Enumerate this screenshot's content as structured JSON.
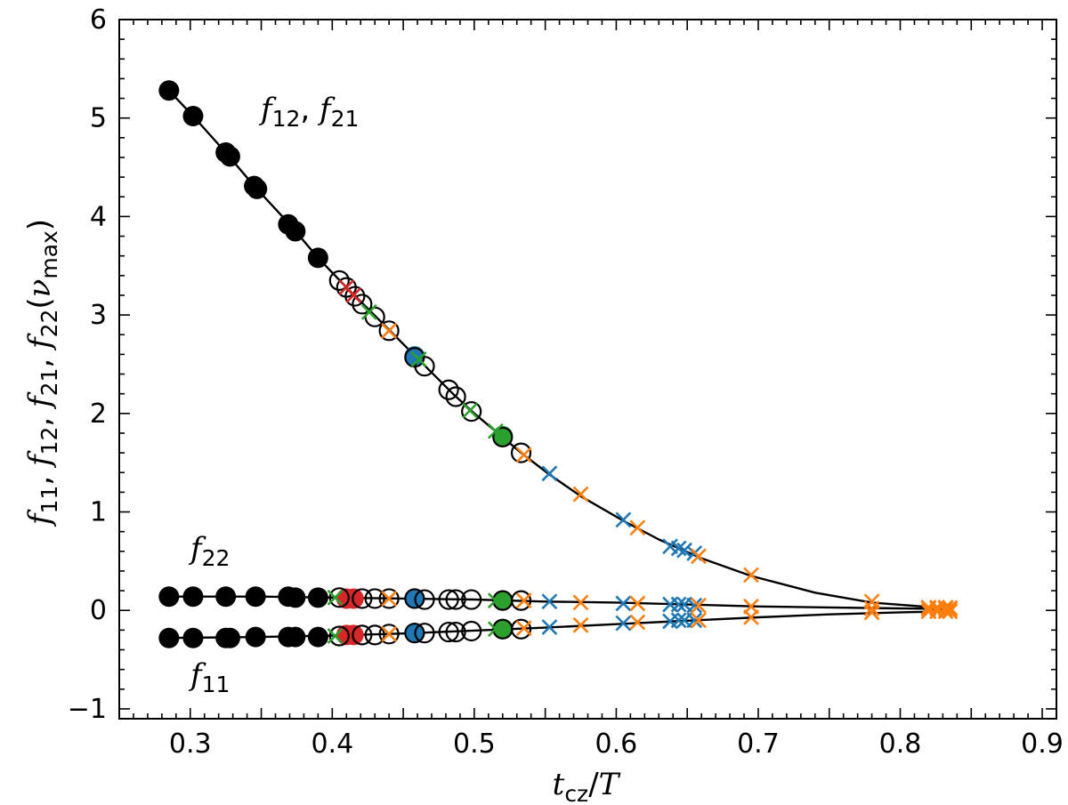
{
  "chart_data": {
    "type": "scatter",
    "title": "",
    "xlabel": {
      "t": "t",
      "sub": "cz",
      "slash": "/",
      "T": "T"
    },
    "ylabel": {
      "f": "f",
      "s11": "11",
      "s12": "12",
      "s21": "21",
      "s22": "22",
      "sep": ", ",
      "open": "(",
      "nu": "ν",
      "nusub": "max",
      "close": ")"
    },
    "xlim": [
      0.25,
      0.91
    ],
    "ylim": [
      -1.1,
      6.0
    ],
    "x_ticks": [
      "0.3",
      "0.4",
      "0.5",
      "0.6",
      "0.7",
      "0.8",
      "0.9"
    ],
    "y_ticks": [
      "−1",
      "0",
      "1",
      "2",
      "3",
      "4",
      "5",
      "6"
    ],
    "annotations": {
      "f12_f21": {
        "f": "f",
        "a": "12",
        "sep": ",  ",
        "b": "21"
      },
      "f22": {
        "f": "f",
        "a": "22"
      },
      "f11": {
        "f": "f",
        "a": "11"
      }
    },
    "colors": {
      "black": "#000000",
      "blue": "#1f77b4",
      "orange": "#ff7f0e",
      "green": "#2ca02c",
      "red": "#d62728"
    },
    "series": [
      {
        "name": "f12, f21",
        "curve": [
          [
            0.285,
            5.28
          ],
          [
            0.302,
            5.02
          ],
          [
            0.325,
            4.65
          ],
          [
            0.345,
            4.31
          ],
          [
            0.37,
            3.92
          ],
          [
            0.39,
            3.58
          ],
          [
            0.41,
            3.28
          ],
          [
            0.44,
            2.85
          ],
          [
            0.46,
            2.56
          ],
          [
            0.485,
            2.2
          ],
          [
            0.5,
            2.0
          ],
          [
            0.52,
            1.76
          ],
          [
            0.533,
            1.6
          ],
          [
            0.553,
            1.38
          ],
          [
            0.575,
            1.16
          ],
          [
            0.605,
            0.91
          ],
          [
            0.63,
            0.72
          ],
          [
            0.66,
            0.53
          ],
          [
            0.695,
            0.35
          ],
          [
            0.74,
            0.18
          ],
          [
            0.78,
            0.08
          ],
          [
            0.82,
            0.035
          ],
          [
            0.835,
            0.028
          ]
        ],
        "points": [
          {
            "x": 0.285,
            "y": 5.28,
            "m": "filled",
            "c": "black"
          },
          {
            "x": 0.302,
            "y": 5.02,
            "m": "filled",
            "c": "black"
          },
          {
            "x": 0.325,
            "y": 4.65,
            "m": "filled",
            "c": "black"
          },
          {
            "x": 0.328,
            "y": 4.61,
            "m": "filled",
            "c": "black"
          },
          {
            "x": 0.345,
            "y": 4.31,
            "m": "filled",
            "c": "black"
          },
          {
            "x": 0.347,
            "y": 4.28,
            "m": "filled",
            "c": "black"
          },
          {
            "x": 0.369,
            "y": 3.92,
            "m": "filled",
            "c": "black"
          },
          {
            "x": 0.374,
            "y": 3.85,
            "m": "filled",
            "c": "black"
          },
          {
            "x": 0.39,
            "y": 3.58,
            "m": "filled",
            "c": "black"
          },
          {
            "x": 0.405,
            "y": 3.35,
            "m": "open",
            "c": "black"
          },
          {
            "x": 0.41,
            "y": 3.28,
            "m": "x",
            "c": "red"
          },
          {
            "x": 0.41,
            "y": 3.28,
            "m": "open",
            "c": "black"
          },
          {
            "x": 0.415,
            "y": 3.2,
            "m": "x",
            "c": "red"
          },
          {
            "x": 0.416,
            "y": 3.19,
            "m": "open",
            "c": "black"
          },
          {
            "x": 0.421,
            "y": 3.11,
            "m": "open",
            "c": "black"
          },
          {
            "x": 0.426,
            "y": 3.03,
            "m": "x",
            "c": "green"
          },
          {
            "x": 0.43,
            "y": 2.98,
            "m": "open",
            "c": "black"
          },
          {
            "x": 0.44,
            "y": 2.84,
            "m": "x",
            "c": "orange"
          },
          {
            "x": 0.44,
            "y": 2.84,
            "m": "open",
            "c": "black"
          },
          {
            "x": 0.458,
            "y": 2.58,
            "m": "filled",
            "c": "blue"
          },
          {
            "x": 0.458,
            "y": 2.57,
            "m": "open",
            "c": "black"
          },
          {
            "x": 0.461,
            "y": 2.55,
            "m": "x",
            "c": "green"
          },
          {
            "x": 0.465,
            "y": 2.48,
            "m": "open",
            "c": "black"
          },
          {
            "x": 0.482,
            "y": 2.24,
            "m": "open",
            "c": "black"
          },
          {
            "x": 0.487,
            "y": 2.17,
            "m": "open",
            "c": "black"
          },
          {
            "x": 0.497,
            "y": 2.03,
            "m": "x",
            "c": "green"
          },
          {
            "x": 0.498,
            "y": 2.02,
            "m": "open",
            "c": "black"
          },
          {
            "x": 0.515,
            "y": 1.82,
            "m": "x",
            "c": "green"
          },
          {
            "x": 0.52,
            "y": 1.77,
            "m": "filled",
            "c": "green"
          },
          {
            "x": 0.52,
            "y": 1.76,
            "m": "open",
            "c": "black"
          },
          {
            "x": 0.533,
            "y": 1.6,
            "m": "open",
            "c": "black"
          },
          {
            "x": 0.535,
            "y": 1.58,
            "m": "x",
            "c": "orange"
          },
          {
            "x": 0.553,
            "y": 1.39,
            "m": "x",
            "c": "blue"
          },
          {
            "x": 0.575,
            "y": 1.18,
            "m": "x",
            "c": "orange"
          },
          {
            "x": 0.605,
            "y": 0.92,
            "m": "x",
            "c": "blue"
          },
          {
            "x": 0.615,
            "y": 0.84,
            "m": "x",
            "c": "orange"
          },
          {
            "x": 0.638,
            "y": 0.65,
            "m": "x",
            "c": "blue"
          },
          {
            "x": 0.644,
            "y": 0.63,
            "m": "x",
            "c": "blue"
          },
          {
            "x": 0.648,
            "y": 0.61,
            "m": "x",
            "c": "blue"
          },
          {
            "x": 0.655,
            "y": 0.58,
            "m": "x",
            "c": "blue"
          },
          {
            "x": 0.658,
            "y": 0.55,
            "m": "x",
            "c": "orange"
          },
          {
            "x": 0.695,
            "y": 0.36,
            "m": "x",
            "c": "orange"
          },
          {
            "x": 0.78,
            "y": 0.09,
            "m": "x",
            "c": "orange"
          },
          {
            "x": 0.82,
            "y": 0.03,
            "m": "x",
            "c": "orange"
          },
          {
            "x": 0.826,
            "y": 0.03,
            "m": "x",
            "c": "orange"
          },
          {
            "x": 0.832,
            "y": 0.03,
            "m": "x",
            "c": "orange"
          },
          {
            "x": 0.835,
            "y": 0.025,
            "m": "x",
            "c": "orange"
          }
        ]
      },
      {
        "name": "f22",
        "curve": [
          [
            0.285,
            0.14
          ],
          [
            0.35,
            0.14
          ],
          [
            0.4,
            0.13
          ],
          [
            0.45,
            0.12
          ],
          [
            0.5,
            0.11
          ],
          [
            0.55,
            0.09
          ],
          [
            0.6,
            0.08
          ],
          [
            0.65,
            0.06
          ],
          [
            0.7,
            0.04
          ],
          [
            0.75,
            0.03
          ],
          [
            0.8,
            0.02
          ],
          [
            0.835,
            0.015
          ]
        ],
        "points": [
          {
            "x": 0.285,
            "y": 0.14,
            "m": "filled",
            "c": "black"
          },
          {
            "x": 0.302,
            "y": 0.14,
            "m": "filled",
            "c": "black"
          },
          {
            "x": 0.325,
            "y": 0.14,
            "m": "filled",
            "c": "black"
          },
          {
            "x": 0.346,
            "y": 0.14,
            "m": "filled",
            "c": "black"
          },
          {
            "x": 0.369,
            "y": 0.14,
            "m": "filled",
            "c": "black"
          },
          {
            "x": 0.374,
            "y": 0.13,
            "m": "filled",
            "c": "black"
          },
          {
            "x": 0.39,
            "y": 0.13,
            "m": "filled",
            "c": "black"
          },
          {
            "x": 0.402,
            "y": 0.13,
            "m": "x",
            "c": "green"
          },
          {
            "x": 0.405,
            "y": 0.13,
            "m": "open",
            "c": "black"
          },
          {
            "x": 0.41,
            "y": 0.12,
            "m": "filled",
            "c": "red"
          },
          {
            "x": 0.415,
            "y": 0.12,
            "m": "filled",
            "c": "red"
          },
          {
            "x": 0.421,
            "y": 0.12,
            "m": "open",
            "c": "black"
          },
          {
            "x": 0.43,
            "y": 0.12,
            "m": "open",
            "c": "black"
          },
          {
            "x": 0.44,
            "y": 0.12,
            "m": "x",
            "c": "orange"
          },
          {
            "x": 0.44,
            "y": 0.12,
            "m": "open",
            "c": "black"
          },
          {
            "x": 0.458,
            "y": 0.12,
            "m": "filled",
            "c": "blue"
          },
          {
            "x": 0.458,
            "y": 0.12,
            "m": "open",
            "c": "black"
          },
          {
            "x": 0.465,
            "y": 0.11,
            "m": "open",
            "c": "black"
          },
          {
            "x": 0.482,
            "y": 0.11,
            "m": "open",
            "c": "black"
          },
          {
            "x": 0.487,
            "y": 0.11,
            "m": "open",
            "c": "black"
          },
          {
            "x": 0.498,
            "y": 0.11,
            "m": "open",
            "c": "black"
          },
          {
            "x": 0.515,
            "y": 0.1,
            "m": "x",
            "c": "green"
          },
          {
            "x": 0.52,
            "y": 0.1,
            "m": "filled",
            "c": "green"
          },
          {
            "x": 0.52,
            "y": 0.1,
            "m": "open",
            "c": "black"
          },
          {
            "x": 0.533,
            "y": 0.1,
            "m": "open",
            "c": "black"
          },
          {
            "x": 0.535,
            "y": 0.1,
            "m": "x",
            "c": "orange"
          },
          {
            "x": 0.553,
            "y": 0.09,
            "m": "x",
            "c": "blue"
          },
          {
            "x": 0.575,
            "y": 0.08,
            "m": "x",
            "c": "orange"
          },
          {
            "x": 0.605,
            "y": 0.07,
            "m": "x",
            "c": "blue"
          },
          {
            "x": 0.615,
            "y": 0.07,
            "m": "x",
            "c": "orange"
          },
          {
            "x": 0.638,
            "y": 0.06,
            "m": "x",
            "c": "blue"
          },
          {
            "x": 0.644,
            "y": 0.06,
            "m": "x",
            "c": "blue"
          },
          {
            "x": 0.648,
            "y": 0.06,
            "m": "x",
            "c": "blue"
          },
          {
            "x": 0.655,
            "y": 0.05,
            "m": "x",
            "c": "blue"
          },
          {
            "x": 0.658,
            "y": 0.05,
            "m": "x",
            "c": "orange"
          },
          {
            "x": 0.695,
            "y": 0.04,
            "m": "x",
            "c": "orange"
          },
          {
            "x": 0.78,
            "y": 0.02,
            "m": "x",
            "c": "orange"
          },
          {
            "x": 0.82,
            "y": 0.02,
            "m": "x",
            "c": "orange"
          },
          {
            "x": 0.826,
            "y": 0.02,
            "m": "x",
            "c": "orange"
          },
          {
            "x": 0.832,
            "y": 0.02,
            "m": "x",
            "c": "orange"
          },
          {
            "x": 0.835,
            "y": 0.015,
            "m": "x",
            "c": "orange"
          }
        ]
      },
      {
        "name": "f11",
        "curve": [
          [
            0.285,
            -0.28
          ],
          [
            0.35,
            -0.27
          ],
          [
            0.4,
            -0.255
          ],
          [
            0.45,
            -0.235
          ],
          [
            0.5,
            -0.205
          ],
          [
            0.55,
            -0.175
          ],
          [
            0.6,
            -0.14
          ],
          [
            0.65,
            -0.105
          ],
          [
            0.7,
            -0.07
          ],
          [
            0.75,
            -0.04
          ],
          [
            0.8,
            -0.02
          ],
          [
            0.835,
            -0.01
          ]
        ],
        "points": [
          {
            "x": 0.285,
            "y": -0.28,
            "m": "filled",
            "c": "black"
          },
          {
            "x": 0.302,
            "y": -0.28,
            "m": "filled",
            "c": "black"
          },
          {
            "x": 0.325,
            "y": -0.28,
            "m": "filled",
            "c": "black"
          },
          {
            "x": 0.328,
            "y": -0.28,
            "m": "filled",
            "c": "black"
          },
          {
            "x": 0.346,
            "y": -0.27,
            "m": "filled",
            "c": "black"
          },
          {
            "x": 0.369,
            "y": -0.27,
            "m": "filled",
            "c": "black"
          },
          {
            "x": 0.374,
            "y": -0.27,
            "m": "filled",
            "c": "black"
          },
          {
            "x": 0.39,
            "y": -0.27,
            "m": "filled",
            "c": "black"
          },
          {
            "x": 0.402,
            "y": -0.26,
            "m": "x",
            "c": "green"
          },
          {
            "x": 0.405,
            "y": -0.26,
            "m": "open",
            "c": "black"
          },
          {
            "x": 0.41,
            "y": -0.25,
            "m": "filled",
            "c": "red"
          },
          {
            "x": 0.415,
            "y": -0.25,
            "m": "filled",
            "c": "red"
          },
          {
            "x": 0.421,
            "y": -0.25,
            "m": "open",
            "c": "black"
          },
          {
            "x": 0.43,
            "y": -0.25,
            "m": "open",
            "c": "black"
          },
          {
            "x": 0.44,
            "y": -0.24,
            "m": "x",
            "c": "orange"
          },
          {
            "x": 0.44,
            "y": -0.24,
            "m": "open",
            "c": "black"
          },
          {
            "x": 0.458,
            "y": -0.23,
            "m": "filled",
            "c": "blue"
          },
          {
            "x": 0.458,
            "y": -0.23,
            "m": "open",
            "c": "black"
          },
          {
            "x": 0.465,
            "y": -0.23,
            "m": "open",
            "c": "black"
          },
          {
            "x": 0.482,
            "y": -0.22,
            "m": "open",
            "c": "black"
          },
          {
            "x": 0.487,
            "y": -0.22,
            "m": "open",
            "c": "black"
          },
          {
            "x": 0.498,
            "y": -0.21,
            "m": "open",
            "c": "black"
          },
          {
            "x": 0.515,
            "y": -0.19,
            "m": "x",
            "c": "green"
          },
          {
            "x": 0.52,
            "y": -0.19,
            "m": "filled",
            "c": "green"
          },
          {
            "x": 0.52,
            "y": -0.19,
            "m": "open",
            "c": "black"
          },
          {
            "x": 0.533,
            "y": -0.19,
            "m": "open",
            "c": "black"
          },
          {
            "x": 0.535,
            "y": -0.18,
            "m": "x",
            "c": "orange"
          },
          {
            "x": 0.553,
            "y": -0.17,
            "m": "x",
            "c": "blue"
          },
          {
            "x": 0.575,
            "y": -0.15,
            "m": "x",
            "c": "orange"
          },
          {
            "x": 0.605,
            "y": -0.13,
            "m": "x",
            "c": "blue"
          },
          {
            "x": 0.615,
            "y": -0.12,
            "m": "x",
            "c": "orange"
          },
          {
            "x": 0.638,
            "y": -0.11,
            "m": "x",
            "c": "blue"
          },
          {
            "x": 0.644,
            "y": -0.1,
            "m": "x",
            "c": "blue"
          },
          {
            "x": 0.648,
            "y": -0.1,
            "m": "x",
            "c": "blue"
          },
          {
            "x": 0.655,
            "y": -0.1,
            "m": "x",
            "c": "blue"
          },
          {
            "x": 0.658,
            "y": -0.1,
            "m": "x",
            "c": "orange"
          },
          {
            "x": 0.695,
            "y": -0.07,
            "m": "x",
            "c": "orange"
          },
          {
            "x": 0.78,
            "y": -0.02,
            "m": "x",
            "c": "orange"
          },
          {
            "x": 0.82,
            "y": -0.01,
            "m": "x",
            "c": "orange"
          },
          {
            "x": 0.826,
            "y": -0.01,
            "m": "x",
            "c": "orange"
          },
          {
            "x": 0.832,
            "y": -0.01,
            "m": "x",
            "c": "orange"
          },
          {
            "x": 0.835,
            "y": -0.01,
            "m": "x",
            "c": "orange"
          }
        ]
      }
    ]
  }
}
